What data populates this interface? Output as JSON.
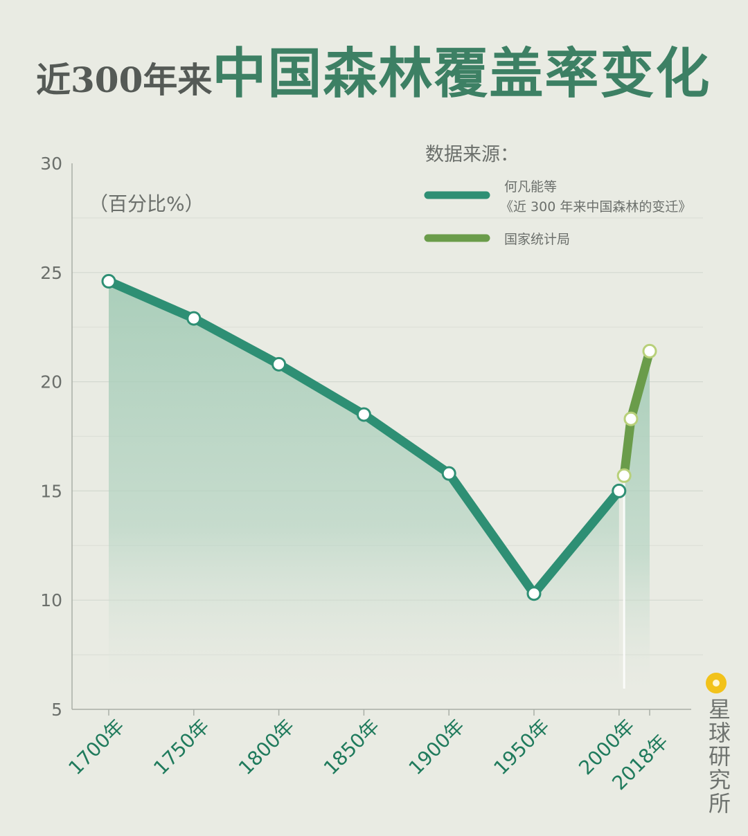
{
  "title": {
    "prefix": "近300年来",
    "main": "中国森林覆盖率变化"
  },
  "brand": {
    "name": "星球研究所",
    "icon": "sun-logo-icon",
    "color": "#f2c21a"
  },
  "colors": {
    "background": "#e9ebe3",
    "series_main": "#2e8f74",
    "series_stats": "#6a9c4a",
    "area_fill": "#9fc9b3",
    "x_label": "#1f7a5c"
  },
  "chart_data": {
    "type": "line",
    "unit_label": "（百分比%）",
    "legend_title": "数据来源：",
    "ylim": [
      5,
      30
    ],
    "yticks": [
      "5",
      "10",
      "15",
      "20",
      "25",
      "30"
    ],
    "xticks": [
      "1700年",
      "1750年",
      "1800年",
      "1850年",
      "1900年",
      "1950年",
      "2000年",
      "2018年"
    ],
    "grid": true,
    "series": [
      {
        "name": "何凡能等",
        "name_line2": "《近 300 年来中国森林的变迁》",
        "color": "#2e8f74",
        "x": [
          1700,
          1750,
          1800,
          1850,
          1900,
          1950,
          2000
        ],
        "y": [
          24.6,
          22.9,
          20.8,
          18.5,
          15.8,
          10.3,
          15.0
        ]
      },
      {
        "name": "国家统计局",
        "color": "#6a9c4a",
        "x": [
          2003,
          2007,
          2018
        ],
        "y": [
          15.7,
          18.3,
          21.4
        ]
      }
    ]
  }
}
